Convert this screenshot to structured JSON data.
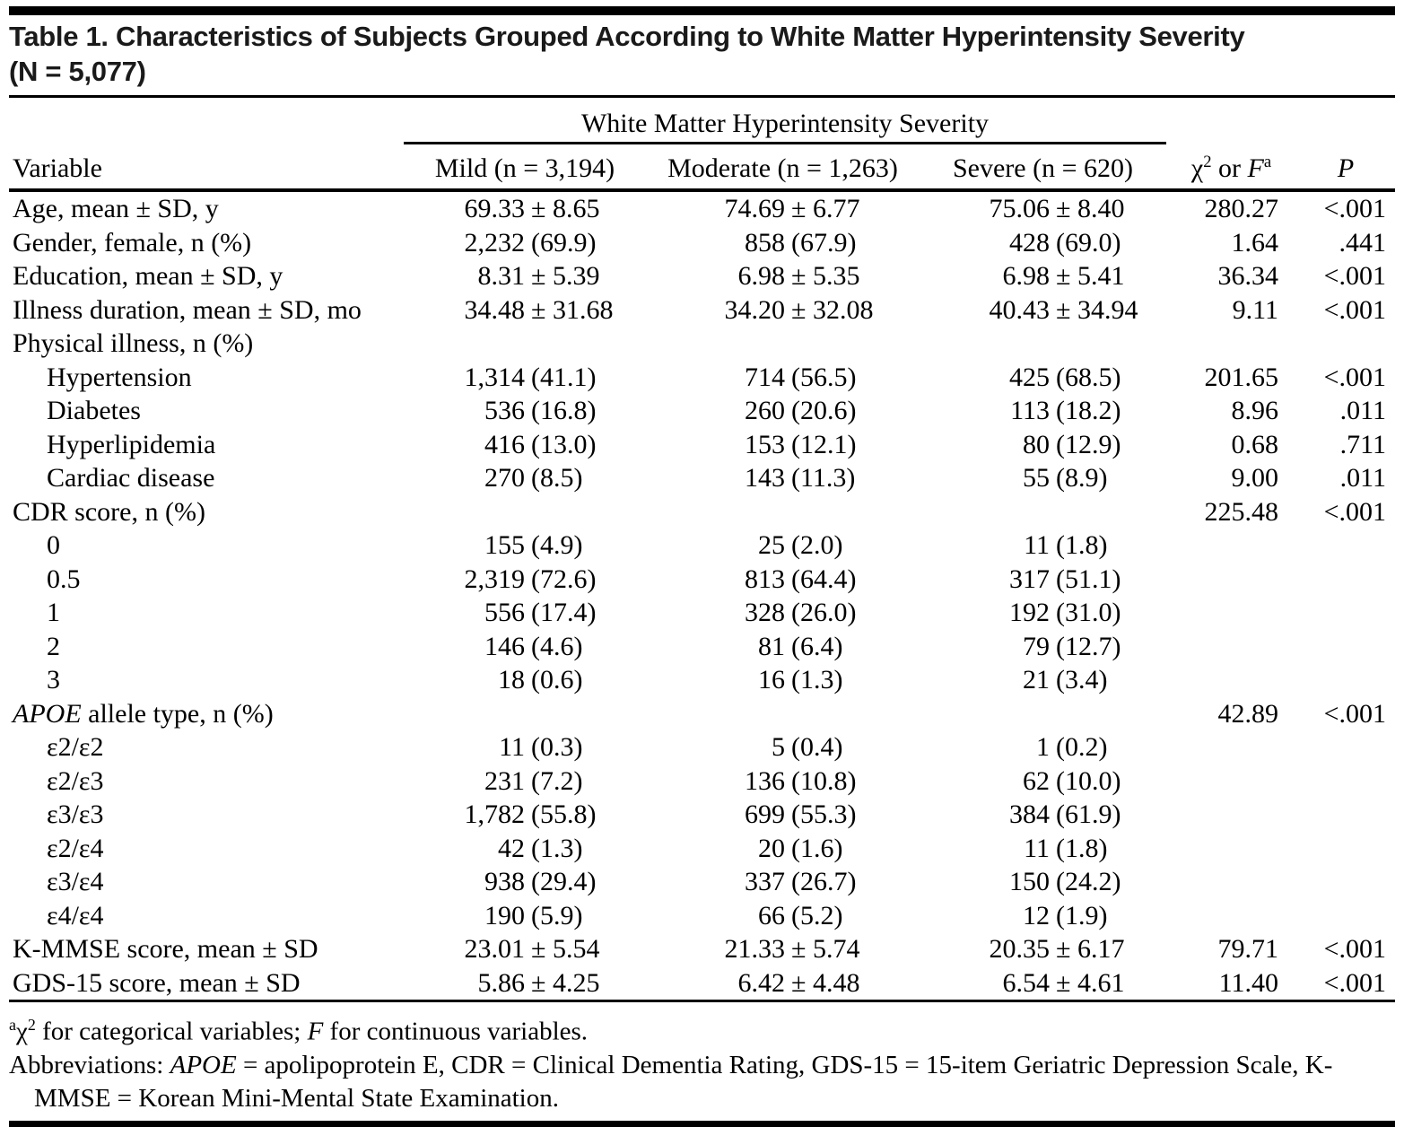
{
  "title": {
    "line1": "Table 1. Characteristics of Subjects Grouped According to White Matter Hyperintensity Severity",
    "line2": "(N = 5,077)"
  },
  "header": {
    "variable": "Variable",
    "spanner": "White Matter Hyperintensity Severity",
    "mild": "Mild (n = 3,194)",
    "moderate": "Moderate (n = 1,263)",
    "severe": "Severe (n = 620)",
    "stat": {
      "chi": "χ",
      "chi_sup": "2",
      "or": " or ",
      "f": "F",
      "f_sup": "a"
    },
    "p": "P"
  },
  "rows": [
    {
      "label": "Age, mean ± SD, y",
      "mild": [
        "69.33",
        "± 8.65"
      ],
      "moderate": [
        "74.69",
        "± 6.77"
      ],
      "severe": [
        "75.06",
        "± 8.40"
      ],
      "stat": "280.27",
      "p": "<.001"
    },
    {
      "label": "Gender, female, n (%)",
      "mild": [
        "2,232",
        "(69.9)"
      ],
      "moderate": [
        "858",
        "(67.9)"
      ],
      "severe": [
        "428",
        "(69.0)"
      ],
      "stat": "1.64",
      "p": ".441"
    },
    {
      "label": "Education, mean ± SD, y",
      "mild": [
        "8.31",
        "± 5.39"
      ],
      "moderate": [
        "6.98",
        "± 5.35"
      ],
      "severe": [
        "6.98",
        "± 5.41"
      ],
      "stat": "36.34",
      "p": "<.001"
    },
    {
      "label": "Illness duration, mean ± SD, mo",
      "mild": [
        "34.48",
        "± 31.68"
      ],
      "moderate": [
        "34.20",
        "± 32.08"
      ],
      "severe": [
        "40.43",
        "± 34.94"
      ],
      "stat": "9.11",
      "p": "<.001"
    },
    {
      "label": "Physical illness, n (%)"
    },
    {
      "label": "Hypertension",
      "indent": true,
      "mild": [
        "1,314",
        "(41.1)"
      ],
      "moderate": [
        "714",
        "(56.5)"
      ],
      "severe": [
        "425",
        "(68.5)"
      ],
      "stat": "201.65",
      "p": "<.001"
    },
    {
      "label": "Diabetes",
      "indent": true,
      "mild": [
        "536",
        "(16.8)"
      ],
      "moderate": [
        "260",
        "(20.6)"
      ],
      "severe": [
        "113",
        "(18.2)"
      ],
      "stat": "8.96",
      "p": ".011"
    },
    {
      "label": "Hyperlipidemia",
      "indent": true,
      "mild": [
        "416",
        "(13.0)"
      ],
      "moderate": [
        "153",
        "(12.1)"
      ],
      "severe": [
        "80",
        "(12.9)"
      ],
      "stat": "0.68",
      "p": ".711"
    },
    {
      "label": "Cardiac disease",
      "indent": true,
      "mild": [
        "270",
        "(8.5)"
      ],
      "moderate": [
        "143",
        "(11.3)"
      ],
      "severe": [
        "55",
        "(8.9)"
      ],
      "stat": "9.00",
      "p": ".011"
    },
    {
      "label": "CDR score, n (%)",
      "stat": "225.48",
      "p": "<.001"
    },
    {
      "label": "0",
      "indent": true,
      "mild": [
        "155",
        "(4.9)"
      ],
      "moderate": [
        "25",
        "(2.0)"
      ],
      "severe": [
        "11",
        "(1.8)"
      ]
    },
    {
      "label": "0.5",
      "indent": true,
      "mild": [
        "2,319",
        "(72.6)"
      ],
      "moderate": [
        "813",
        "(64.4)"
      ],
      "severe": [
        "317",
        "(51.1)"
      ]
    },
    {
      "label": "1",
      "indent": true,
      "mild": [
        "556",
        "(17.4)"
      ],
      "moderate": [
        "328",
        "(26.0)"
      ],
      "severe": [
        "192",
        "(31.0)"
      ]
    },
    {
      "label": "2",
      "indent": true,
      "mild": [
        "146",
        "(4.6)"
      ],
      "moderate": [
        "81",
        "(6.4)"
      ],
      "severe": [
        "79",
        "(12.7)"
      ]
    },
    {
      "label": "3",
      "indent": true,
      "mild": [
        "18",
        "(0.6)"
      ],
      "moderate": [
        "16",
        "(1.3)"
      ],
      "severe": [
        "21",
        "(3.4)"
      ]
    },
    {
      "label_i": "APOE",
      "label": " allele type, n (%)",
      "stat": "42.89",
      "p": "<.001"
    },
    {
      "label": "ε2/ε2",
      "indent": true,
      "mild": [
        "11",
        "(0.3)"
      ],
      "moderate": [
        "5",
        "(0.4)"
      ],
      "severe": [
        "1",
        "(0.2)"
      ]
    },
    {
      "label": "ε2/ε3",
      "indent": true,
      "mild": [
        "231",
        "(7.2)"
      ],
      "moderate": [
        "136",
        "(10.8)"
      ],
      "severe": [
        "62",
        "(10.0)"
      ]
    },
    {
      "label": "ε3/ε3",
      "indent": true,
      "mild": [
        "1,782",
        "(55.8)"
      ],
      "moderate": [
        "699",
        "(55.3)"
      ],
      "severe": [
        "384",
        "(61.9)"
      ]
    },
    {
      "label": "ε2/ε4",
      "indent": true,
      "mild": [
        "42",
        "(1.3)"
      ],
      "moderate": [
        "20",
        "(1.6)"
      ],
      "severe": [
        "11",
        "(1.8)"
      ]
    },
    {
      "label": "ε3/ε4",
      "indent": true,
      "mild": [
        "938",
        "(29.4)"
      ],
      "moderate": [
        "337",
        "(26.7)"
      ],
      "severe": [
        "150",
        "(24.2)"
      ]
    },
    {
      "label": "ε4/ε4",
      "indent": true,
      "mild": [
        "190",
        "(5.9)"
      ],
      "moderate": [
        "66",
        "(5.2)"
      ],
      "severe": [
        "12",
        "(1.9)"
      ]
    },
    {
      "label": "K-MMSE score, mean ± SD",
      "mild": [
        "23.01",
        "± 5.54"
      ],
      "moderate": [
        "21.33",
        "± 5.74"
      ],
      "severe": [
        "20.35",
        "± 6.17"
      ],
      "stat": "79.71",
      "p": "<.001"
    },
    {
      "label": "GDS-15 score, mean ± SD",
      "mild": [
        "5.86",
        "± 4.25"
      ],
      "moderate": [
        "6.42",
        "± 4.48"
      ],
      "severe": [
        "6.54",
        "± 4.61"
      ],
      "stat": "11.40",
      "p": "<.001"
    }
  ],
  "footnotes": {
    "a": {
      "marker": "a",
      "chi": "χ",
      "chi_sup": "2",
      "text1": " for categorical variables; ",
      "f": "F",
      "text2": " for continuous variables."
    },
    "abbrev": {
      "prefix": "Abbreviations: ",
      "apoe": "APOE",
      "text": " = apolipoprotein E, CDR = Clinical Dementia Rating, GDS-15 = 15-item Geriatric Depression Scale, K-MMSE = Korean Mini-Mental State Examination."
    }
  }
}
